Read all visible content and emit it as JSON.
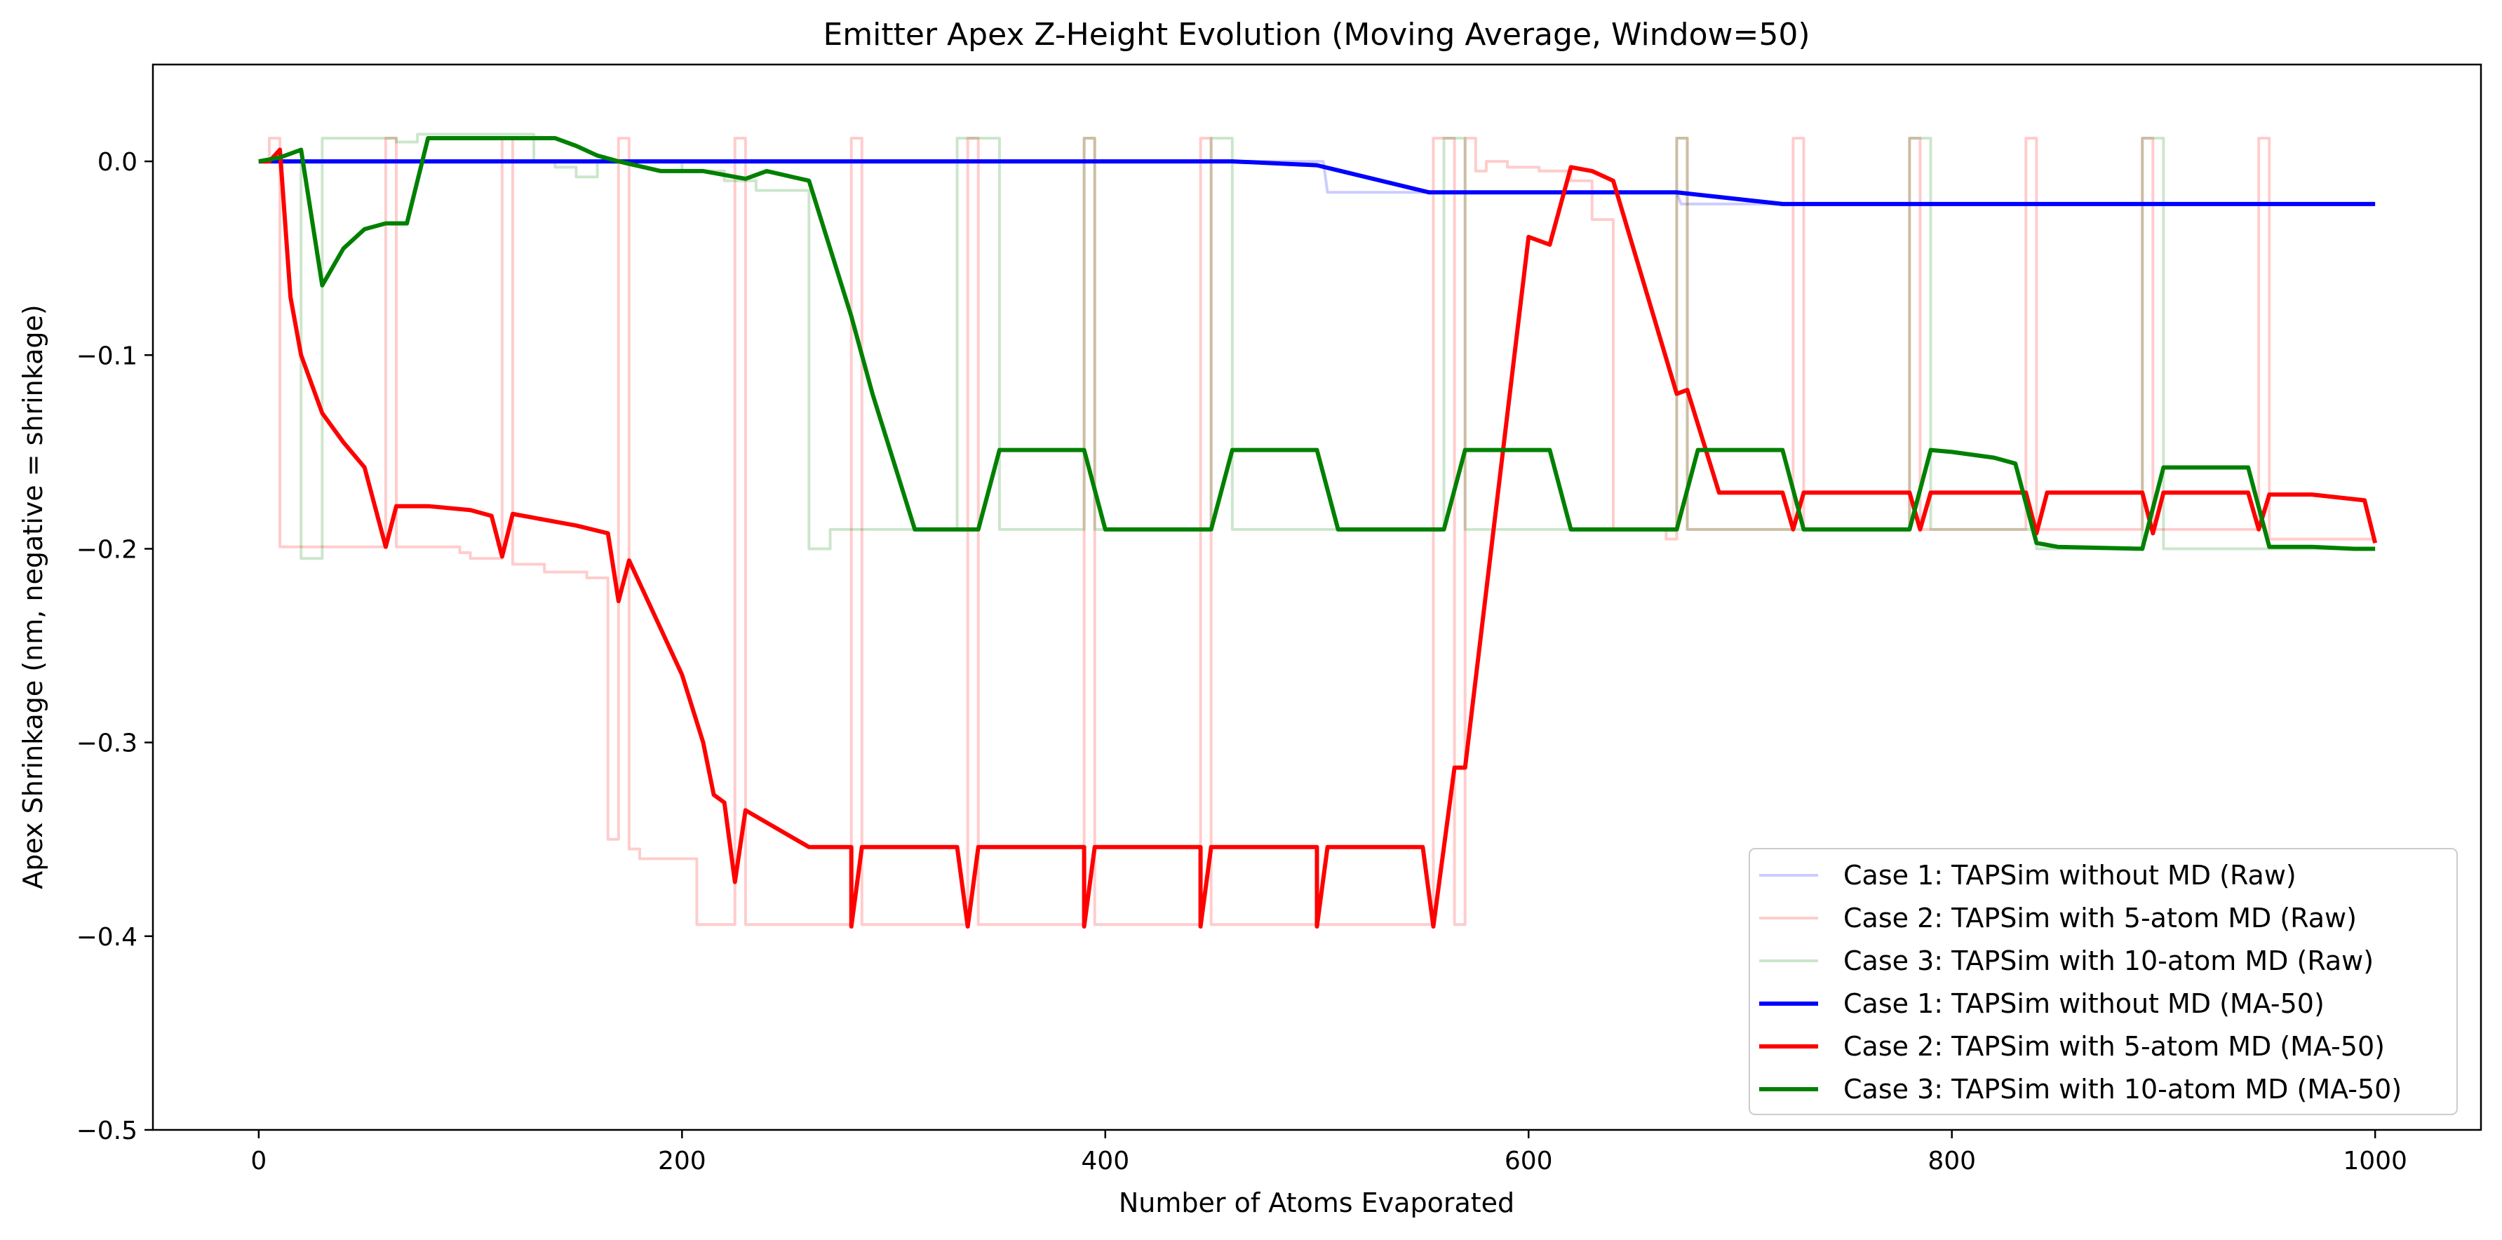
{
  "chart_data": {
    "type": "line",
    "title": "Emitter Apex Z-Height Evolution (Moving Average, Window=50)",
    "xlabel": "Number of Atoms Evaporated",
    "ylabel": "Apex Shrinkage (nm, negative = shrinkage)",
    "xlim": [
      -50,
      1050
    ],
    "ylim": [
      -0.5,
      0.05
    ],
    "xticks": [
      0,
      200,
      400,
      600,
      800,
      1000
    ],
    "xtick_labels": [
      "0",
      "200",
      "400",
      "600",
      "800",
      "1000"
    ],
    "yticks": [
      0.0,
      -0.1,
      -0.2,
      -0.3,
      -0.4,
      -0.5
    ],
    "ytick_labels": [
      "0.0",
      "−0.1",
      "−0.2",
      "−0.3",
      "−0.4",
      "−0.5"
    ],
    "grid": false,
    "legend_position": "lower-right",
    "series": [
      {
        "name": "Case 1: TAPSim without MD (Raw)",
        "color": "#0000ff",
        "opacity": 0.2,
        "width": "thin",
        "step": true,
        "points": [
          [
            0,
            0
          ],
          [
            503,
            0
          ],
          [
            505,
            -0.016
          ],
          [
            553,
            -0.016
          ],
          [
            670,
            -0.016
          ],
          [
            672,
            -0.022
          ],
          [
            1000,
            -0.022
          ]
        ]
      },
      {
        "name": "Case 2: TAPSim with 5-atom MD (Raw)",
        "color": "#ff0000",
        "opacity": 0.2,
        "width": "thin",
        "step": true,
        "points": [
          [
            0,
            0
          ],
          [
            5,
            0
          ],
          [
            5,
            0.012
          ],
          [
            10,
            0.012
          ],
          [
            10,
            -0.199
          ],
          [
            60,
            -0.199
          ],
          [
            60,
            0.012
          ],
          [
            65,
            0.012
          ],
          [
            65,
            -0.199
          ],
          [
            95,
            -0.199
          ],
          [
            95,
            -0.202
          ],
          [
            100,
            -0.202
          ],
          [
            100,
            -0.205
          ],
          [
            115,
            -0.205
          ],
          [
            115,
            0.012
          ],
          [
            120,
            0.012
          ],
          [
            120,
            -0.208
          ],
          [
            135,
            -0.208
          ],
          [
            135,
            -0.212
          ],
          [
            155,
            -0.212
          ],
          [
            155,
            -0.215
          ],
          [
            165,
            -0.215
          ],
          [
            165,
            -0.35
          ],
          [
            170,
            -0.35
          ],
          [
            170,
            0.012
          ],
          [
            175,
            0.012
          ],
          [
            175,
            -0.355
          ],
          [
            180,
            -0.355
          ],
          [
            180,
            -0.36
          ],
          [
            207,
            -0.36
          ],
          [
            207,
            -0.394
          ],
          [
            225,
            -0.394
          ],
          [
            225,
            0.012
          ],
          [
            230,
            0.012
          ],
          [
            230,
            -0.394
          ],
          [
            280,
            -0.394
          ],
          [
            280,
            0.012
          ],
          [
            285,
            0.012
          ],
          [
            285,
            -0.394
          ],
          [
            335,
            -0.394
          ],
          [
            335,
            0.012
          ],
          [
            340,
            0.012
          ],
          [
            340,
            -0.394
          ],
          [
            390,
            -0.394
          ],
          [
            390,
            0.012
          ],
          [
            395,
            0.012
          ],
          [
            395,
            -0.394
          ],
          [
            445,
            -0.394
          ],
          [
            445,
            0.012
          ],
          [
            450,
            0.012
          ],
          [
            450,
            -0.394
          ],
          [
            555,
            -0.394
          ],
          [
            555,
            0.012
          ],
          [
            565,
            0.012
          ],
          [
            565,
            -0.394
          ],
          [
            570,
            -0.394
          ],
          [
            570,
            0.012
          ],
          [
            575,
            0.012
          ],
          [
            575,
            -0.005
          ],
          [
            580,
            -0.005
          ],
          [
            580,
            0.0
          ],
          [
            590,
            0.0
          ],
          [
            590,
            -0.003
          ],
          [
            605,
            -0.003
          ],
          [
            605,
            -0.005
          ],
          [
            620,
            -0.005
          ],
          [
            620,
            -0.01
          ],
          [
            630,
            -0.01
          ],
          [
            630,
            -0.03
          ],
          [
            640,
            -0.03
          ],
          [
            640,
            -0.19
          ],
          [
            665,
            -0.19
          ],
          [
            665,
            -0.195
          ],
          [
            670,
            -0.195
          ],
          [
            670,
            0.012
          ],
          [
            675,
            0.012
          ],
          [
            675,
            -0.19
          ],
          [
            725,
            -0.19
          ],
          [
            725,
            0.012
          ],
          [
            730,
            0.012
          ],
          [
            730,
            -0.19
          ],
          [
            780,
            -0.19
          ],
          [
            780,
            0.012
          ],
          [
            785,
            0.012
          ],
          [
            785,
            -0.19
          ],
          [
            835,
            -0.19
          ],
          [
            835,
            0.012
          ],
          [
            840,
            0.012
          ],
          [
            840,
            -0.19
          ],
          [
            890,
            -0.19
          ],
          [
            890,
            0.012
          ],
          [
            895,
            0.012
          ],
          [
            895,
            -0.19
          ],
          [
            945,
            -0.19
          ],
          [
            945,
            0.012
          ],
          [
            950,
            0.012
          ],
          [
            950,
            -0.195
          ],
          [
            1000,
            -0.195
          ]
        ]
      },
      {
        "name": "Case 3: TAPSim with 10-atom MD (Raw)",
        "color": "#008000",
        "opacity": 0.2,
        "width": "thin",
        "step": true,
        "points": [
          [
            0,
            0
          ],
          [
            20,
            0
          ],
          [
            20,
            -0.205
          ],
          [
            30,
            -0.205
          ],
          [
            30,
            0.012
          ],
          [
            65,
            0.012
          ],
          [
            65,
            0.01
          ],
          [
            75,
            0.01
          ],
          [
            75,
            0.014
          ],
          [
            130,
            0.014
          ],
          [
            130,
            0.0
          ],
          [
            140,
            0.0
          ],
          [
            140,
            -0.003
          ],
          [
            150,
            -0.003
          ],
          [
            150,
            -0.008
          ],
          [
            160,
            -0.008
          ],
          [
            160,
            0.0
          ],
          [
            200,
            0.0
          ],
          [
            200,
            -0.005
          ],
          [
            220,
            -0.005
          ],
          [
            220,
            -0.01
          ],
          [
            235,
            -0.01
          ],
          [
            235,
            -0.015
          ],
          [
            260,
            -0.015
          ],
          [
            260,
            -0.2
          ],
          [
            270,
            -0.2
          ],
          [
            270,
            -0.19
          ],
          [
            330,
            -0.19
          ],
          [
            330,
            0.012
          ],
          [
            350,
            0.012
          ],
          [
            350,
            -0.19
          ],
          [
            390,
            -0.19
          ],
          [
            390,
            0.012
          ],
          [
            395,
            0.012
          ],
          [
            395,
            -0.19
          ],
          [
            450,
            -0.19
          ],
          [
            450,
            0.012
          ],
          [
            460,
            0.012
          ],
          [
            460,
            -0.19
          ],
          [
            560,
            -0.19
          ],
          [
            560,
            0.012
          ],
          [
            570,
            0.012
          ],
          [
            570,
            -0.19
          ],
          [
            670,
            -0.19
          ],
          [
            670,
            0.012
          ],
          [
            675,
            0.012
          ],
          [
            675,
            -0.19
          ],
          [
            780,
            -0.19
          ],
          [
            780,
            0.012
          ],
          [
            790,
            0.012
          ],
          [
            790,
            -0.19
          ],
          [
            840,
            -0.19
          ],
          [
            840,
            -0.2
          ],
          [
            890,
            -0.2
          ],
          [
            890,
            0.012
          ],
          [
            900,
            0.012
          ],
          [
            900,
            -0.2
          ],
          [
            1000,
            -0.2
          ]
        ]
      },
      {
        "name": "Case 1: TAPSim without MD (MA-50)",
        "color": "#0000ff",
        "opacity": 1.0,
        "width": "thick",
        "step": false,
        "points": [
          [
            0,
            0
          ],
          [
            460,
            0
          ],
          [
            500,
            -0.002
          ],
          [
            553,
            -0.016
          ],
          [
            670,
            -0.016
          ],
          [
            720,
            -0.022
          ],
          [
            1000,
            -0.022
          ]
        ]
      },
      {
        "name": "Case 2: TAPSim with 5-atom MD (MA-50)",
        "color": "#ff0000",
        "opacity": 1.0,
        "width": "thick",
        "step": false,
        "points": [
          [
            0,
            0
          ],
          [
            5,
            0
          ],
          [
            10,
            0.006
          ],
          [
            15,
            -0.07
          ],
          [
            20,
            -0.1
          ],
          [
            30,
            -0.13
          ],
          [
            40,
            -0.145
          ],
          [
            50,
            -0.158
          ],
          [
            60,
            -0.199
          ],
          [
            65,
            -0.178
          ],
          [
            80,
            -0.178
          ],
          [
            100,
            -0.18
          ],
          [
            110,
            -0.183
          ],
          [
            115,
            -0.204
          ],
          [
            120,
            -0.182
          ],
          [
            140,
            -0.186
          ],
          [
            150,
            -0.188
          ],
          [
            165,
            -0.192
          ],
          [
            170,
            -0.227
          ],
          [
            175,
            -0.206
          ],
          [
            200,
            -0.265
          ],
          [
            210,
            -0.3
          ],
          [
            215,
            -0.327
          ],
          [
            220,
            -0.331
          ],
          [
            225,
            -0.372
          ],
          [
            230,
            -0.335
          ],
          [
            260,
            -0.354
          ],
          [
            280,
            -0.354
          ],
          [
            280,
            -0.395
          ],
          [
            285,
            -0.354
          ],
          [
            330,
            -0.354
          ],
          [
            335,
            -0.395
          ],
          [
            340,
            -0.354
          ],
          [
            390,
            -0.354
          ],
          [
            390,
            -0.395
          ],
          [
            395,
            -0.354
          ],
          [
            445,
            -0.354
          ],
          [
            445,
            -0.395
          ],
          [
            450,
            -0.354
          ],
          [
            500,
            -0.354
          ],
          [
            500,
            -0.395
          ],
          [
            505,
            -0.354
          ],
          [
            550,
            -0.354
          ],
          [
            555,
            -0.395
          ],
          [
            565,
            -0.313
          ],
          [
            570,
            -0.313
          ],
          [
            600,
            -0.039
          ],
          [
            610,
            -0.043
          ],
          [
            620,
            -0.003
          ],
          [
            630,
            -0.005
          ],
          [
            640,
            -0.01
          ],
          [
            670,
            -0.12
          ],
          [
            675,
            -0.118
          ],
          [
            690,
            -0.171
          ],
          [
            720,
            -0.171
          ],
          [
            725,
            -0.19
          ],
          [
            730,
            -0.171
          ],
          [
            780,
            -0.171
          ],
          [
            785,
            -0.19
          ],
          [
            790,
            -0.171
          ],
          [
            835,
            -0.171
          ],
          [
            840,
            -0.192
          ],
          [
            845,
            -0.171
          ],
          [
            890,
            -0.171
          ],
          [
            895,
            -0.192
          ],
          [
            900,
            -0.171
          ],
          [
            940,
            -0.171
          ],
          [
            945,
            -0.19
          ],
          [
            950,
            -0.172
          ],
          [
            970,
            -0.172
          ],
          [
            995,
            -0.175
          ],
          [
            1000,
            -0.197
          ]
        ]
      },
      {
        "name": "Case 3: TAPSim with 10-atom MD (MA-50)",
        "color": "#008000",
        "opacity": 1.0,
        "width": "thick",
        "step": false,
        "points": [
          [
            0,
            0
          ],
          [
            10,
            0.002
          ],
          [
            20,
            0.006
          ],
          [
            30,
            -0.064
          ],
          [
            40,
            -0.045
          ],
          [
            50,
            -0.035
          ],
          [
            60,
            -0.032
          ],
          [
            70,
            -0.032
          ],
          [
            80,
            0.012
          ],
          [
            140,
            0.012
          ],
          [
            150,
            0.008
          ],
          [
            160,
            0.003
          ],
          [
            170,
            0.0
          ],
          [
            190,
            -0.005
          ],
          [
            210,
            -0.005
          ],
          [
            230,
            -0.009
          ],
          [
            240,
            -0.005
          ],
          [
            260,
            -0.01
          ],
          [
            280,
            -0.08
          ],
          [
            290,
            -0.12
          ],
          [
            310,
            -0.19
          ],
          [
            320,
            -0.19
          ],
          [
            340,
            -0.19
          ],
          [
            350,
            -0.149
          ],
          [
            390,
            -0.149
          ],
          [
            400,
            -0.19
          ],
          [
            450,
            -0.19
          ],
          [
            460,
            -0.149
          ],
          [
            500,
            -0.149
          ],
          [
            510,
            -0.19
          ],
          [
            560,
            -0.19
          ],
          [
            570,
            -0.149
          ],
          [
            610,
            -0.149
          ],
          [
            620,
            -0.19
          ],
          [
            670,
            -0.19
          ],
          [
            680,
            -0.149
          ],
          [
            720,
            -0.149
          ],
          [
            730,
            -0.19
          ],
          [
            780,
            -0.19
          ],
          [
            790,
            -0.149
          ],
          [
            800,
            -0.15
          ],
          [
            820,
            -0.153
          ],
          [
            830,
            -0.156
          ],
          [
            840,
            -0.197
          ],
          [
            850,
            -0.199
          ],
          [
            890,
            -0.2
          ],
          [
            900,
            -0.158
          ],
          [
            940,
            -0.158
          ],
          [
            950,
            -0.199
          ],
          [
            970,
            -0.199
          ],
          [
            990,
            -0.2
          ],
          [
            1000,
            -0.2
          ]
        ]
      }
    ]
  }
}
